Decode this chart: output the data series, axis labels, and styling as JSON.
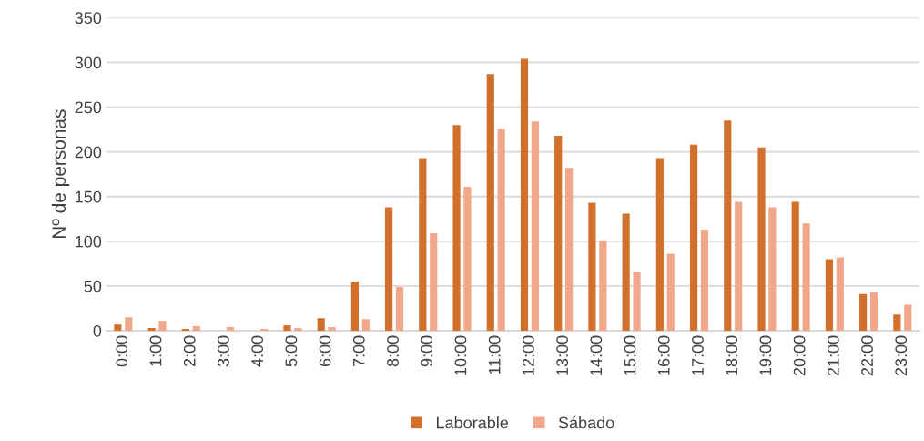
{
  "chart_data": {
    "type": "bar",
    "ylabel": "Nº de personas",
    "categories": [
      "0:00",
      "1:00",
      "2:00",
      "3:00",
      "4:00",
      "5:00",
      "6:00",
      "7:00",
      "8:00",
      "9:00",
      "10:00",
      "11:00",
      "12:00",
      "13:00",
      "14:00",
      "15:00",
      "16:00",
      "17:00",
      "18:00",
      "19:00",
      "20:00",
      "21:00",
      "22:00",
      "23:00"
    ],
    "series": [
      {
        "name": "Laborable",
        "color": "#d2702b",
        "values": [
          7,
          3,
          2,
          0,
          0,
          6,
          14,
          55,
          138,
          193,
          230,
          287,
          304,
          218,
          143,
          131,
          193,
          208,
          235,
          205,
          144,
          80,
          41,
          18
        ]
      },
      {
        "name": "Sábado",
        "color": "#f1a78a",
        "values": [
          15,
          11,
          5,
          4,
          2,
          3,
          4,
          13,
          49,
          109,
          161,
          225,
          234,
          182,
          101,
          66,
          86,
          113,
          144,
          138,
          120,
          82,
          43,
          29
        ]
      }
    ],
    "ylim": [
      0,
      350
    ],
    "yticks": [
      0,
      50,
      100,
      150,
      200,
      250,
      300,
      350
    ],
    "grid": "y",
    "legend": "bottom"
  }
}
